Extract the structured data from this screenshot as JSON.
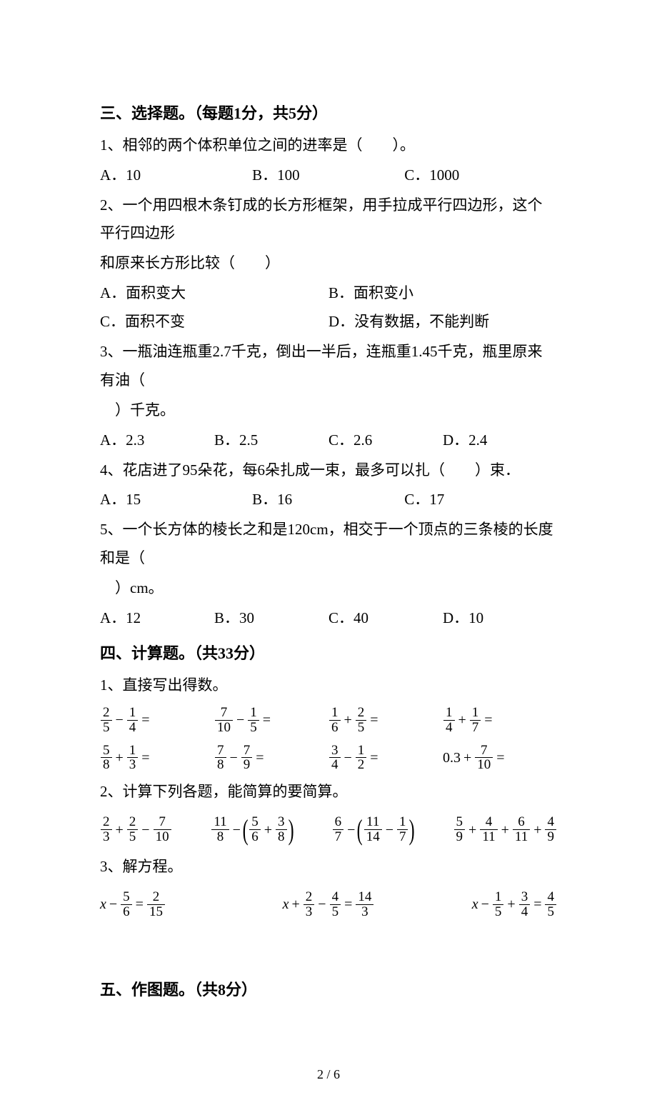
{
  "sectionIII": {
    "title": "三、选择题。（每题1分，共5分）",
    "q1": {
      "text": "1、相邻的两个体积单位之间的进率是（　　）。",
      "opts": [
        "A．10",
        "B．100",
        "C．1000"
      ]
    },
    "q2": {
      "line1": "2、一个用四根木条钉成的长方形框架，用手拉成平行四边形，这个平行四边形",
      "line2": "和原来长方形比较（　　）",
      "opts": [
        "A．面积变大",
        "B．面积变小",
        "C．面积不变",
        "D．没有数据，不能判断"
      ]
    },
    "q3": {
      "line1": "3、一瓶油连瓶重2.7千克，倒出一半后，连瓶重1.45千克，瓶里原来有油（",
      "line2": "　）千克。",
      "opts": [
        "A．2.3",
        "B．2.5",
        "C．2.6",
        "D．2.4"
      ]
    },
    "q4": {
      "text": "4、花店进了95朵花，每6朵扎成一束，最多可以扎（　　）束．",
      "opts": [
        "A．15",
        "B．16",
        "C．17"
      ]
    },
    "q5": {
      "line1": "5、一个长方体的棱长之和是120cm，相交于一个顶点的三条棱的长度和是（",
      "line2": "　）cm。",
      "opts": [
        "A．12",
        "B．30",
        "C．40",
        "D．10"
      ]
    }
  },
  "sectionIV": {
    "title": "四、计算题。（共33分）",
    "p1": {
      "label": "1、直接写出得数。",
      "items": [
        {
          "a": "2",
          "b": "5",
          "op": "−",
          "c": "1",
          "d": "4"
        },
        {
          "a": "7",
          "b": "10",
          "op": "−",
          "c": "1",
          "d": "5"
        },
        {
          "a": "1",
          "b": "6",
          "op": "+",
          "c": "2",
          "d": "5"
        },
        {
          "a": "1",
          "b": "4",
          "op": "+",
          "c": "1",
          "d": "7"
        },
        {
          "a": "5",
          "b": "8",
          "op": "+",
          "c": "1",
          "d": "3"
        },
        {
          "a": "7",
          "b": "8",
          "op": "−",
          "c": "7",
          "d": "9"
        },
        {
          "a": "3",
          "b": "4",
          "op": "−",
          "c": "1",
          "d": "2"
        },
        {
          "dec": "0.3",
          "op": "+",
          "c": "7",
          "d": "10"
        }
      ]
    },
    "p2": {
      "label": "2、计算下列各题，能简算的要简算。",
      "e1": {
        "f1": [
          "2",
          "3"
        ],
        "op1": "+",
        "f2": [
          "2",
          "5"
        ],
        "op2": "−",
        "f3": [
          "7",
          "10"
        ]
      },
      "e2": {
        "f1": [
          "11",
          "8"
        ],
        "op": "−",
        "pf1": [
          "5",
          "6"
        ],
        "pop": "+",
        "pf2": [
          "3",
          "8"
        ]
      },
      "e3": {
        "f1": [
          "6",
          "7"
        ],
        "op": "−",
        "pf1": [
          "11",
          "14"
        ],
        "pop": "−",
        "pf2": [
          "1",
          "7"
        ]
      },
      "e4": {
        "f1": [
          "5",
          "9"
        ],
        "f2": [
          "4",
          "11"
        ],
        "f3": [
          "6",
          "11"
        ],
        "f4": [
          "4",
          "9"
        ]
      }
    },
    "p3": {
      "label": "3、解方程。",
      "eq1": {
        "lhs": {
          "var": "x",
          "op": "−",
          "f": [
            "5",
            "6"
          ]
        },
        "rhsf": [
          "2",
          "15"
        ]
      },
      "eq2": {
        "var": "x",
        "op1": "+",
        "f1": [
          "2",
          "3"
        ],
        "op2": "−",
        "f2": [
          "4",
          "5"
        ],
        "rhsf": [
          "14",
          "3"
        ]
      },
      "eq3": {
        "var": "x",
        "op1": "−",
        "f1": [
          "1",
          "5"
        ],
        "op2": "+",
        "f2": [
          "3",
          "4"
        ],
        "rhsf": [
          "4",
          "5"
        ]
      }
    }
  },
  "sectionV": {
    "title": "五、作图题。（共8分）"
  },
  "pagenum": "2 / 6"
}
